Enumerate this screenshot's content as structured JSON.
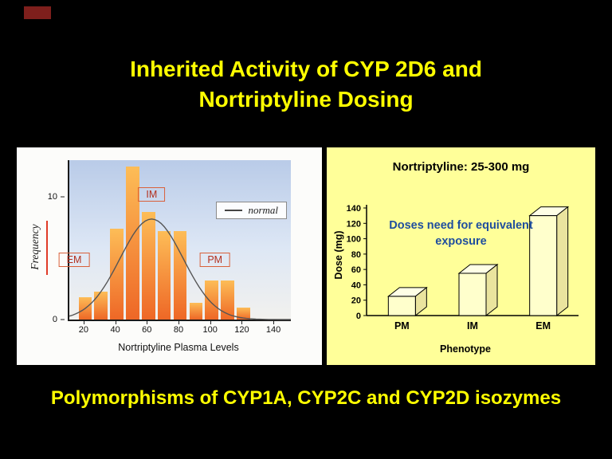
{
  "slide": {
    "title_line1": "Inherited Activity of CYP 2D6 and",
    "title_line2": "Nortriptyline Dosing",
    "footer": "Polymorphisms of CYP1A, CYP2C and CYP2D isozymes",
    "title_color": "#ffff00",
    "accent_color": "#7e1f1c",
    "background_color": "#000000"
  },
  "chart_data": [
    {
      "type": "bar",
      "subtype": "histogram-with-normal-curve",
      "xlabel": "Nortriptyline Plasma Levels",
      "ylabel": "Frequency",
      "xlim": [
        10,
        150
      ],
      "ylim": [
        0,
        13
      ],
      "x_ticks": [
        20,
        40,
        60,
        80,
        100,
        120,
        140
      ],
      "y_ticks": [
        0,
        10
      ],
      "bar_width": 8.4,
      "bin_centers": [
        20,
        30,
        40,
        50,
        60,
        70,
        80,
        90,
        100,
        110,
        120
      ],
      "values": [
        1.8,
        2.3,
        7.4,
        12.5,
        8.8,
        7.2,
        7.2,
        1.4,
        3.2,
        3.2,
        1.0
      ],
      "curve": {
        "shape": "normal",
        "mean": 62,
        "sd": 20,
        "peak": 8.2,
        "legend": "normal"
      },
      "annotations": [
        {
          "label": "EM",
          "x": 13,
          "y": 4.9
        },
        {
          "label": "IM",
          "x": 62,
          "y": 10.2
        },
        {
          "label": "PM",
          "x": 102,
          "y": 4.9
        }
      ],
      "bar_color_top": "#fdbd57",
      "bar_color_bottom": "#ee6726",
      "curve_color": "#555555"
    },
    {
      "type": "bar",
      "subtype": "3d",
      "title": "Nortriptyline: 25-300 mg",
      "xlabel": "Phenotype",
      "ylabel": "Dose (mg)",
      "categories": [
        "PM",
        "IM",
        "EM"
      ],
      "values": [
        25,
        55,
        130
      ],
      "ylim": [
        0,
        140
      ],
      "y_ticks": [
        0,
        20,
        40,
        60,
        80,
        100,
        120,
        140
      ],
      "annotation": "Doses need for equivalent exposure",
      "annotation_color": "#1f4e9e",
      "panel_color": "#ffff99",
      "bar_front_color": "#ffffcc",
      "bar_top_color": "#ffffe6",
      "bar_side_color": "#eae49e"
    }
  ]
}
